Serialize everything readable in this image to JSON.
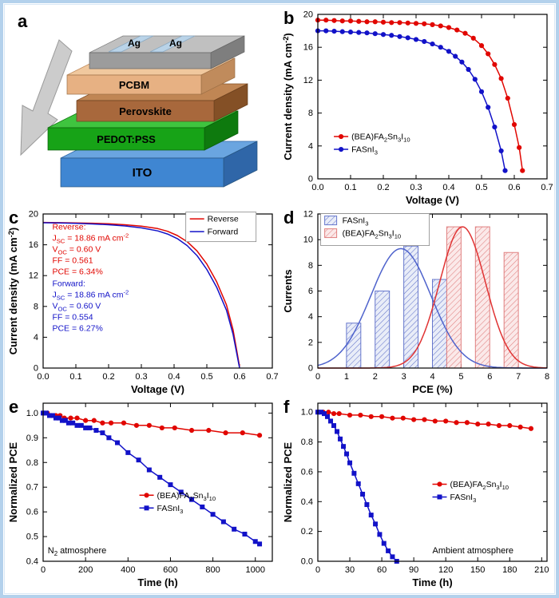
{
  "panels": {
    "a": "a",
    "b": "b",
    "c": "c",
    "d": "d",
    "e": "e",
    "f": "f"
  },
  "device": {
    "layers": [
      {
        "name": "ITO",
        "color": "#3f86d2"
      },
      {
        "name": "PEDOT:PSS",
        "color": "#17a317"
      },
      {
        "name": "Perovskite",
        "color": "#a8683c"
      },
      {
        "name": "PCBM",
        "color": "#e7b183"
      },
      {
        "name": "Ag",
        "color": "#9c9c9c"
      }
    ],
    "electrode_labels": [
      "Ag",
      "Ag"
    ]
  },
  "colors": {
    "series_red": "#e10600",
    "series_blue": "#1212c8",
    "frame_blue": "#b3d1ec"
  },
  "chart_data": [
    {
      "panel": "b",
      "type": "line",
      "xlabel": "Voltage (V)",
      "ylabel": "Current density (mA cm^{-2})",
      "xlim": [
        0,
        0.7
      ],
      "ylim": [
        0,
        20
      ],
      "xticks": {
        "vals": [
          0,
          0.1,
          0.2,
          0.3,
          0.4,
          0.5,
          0.6,
          0.7
        ],
        "labels": [
          "0.0",
          "0.1",
          "0.2",
          "0.3",
          "0.4",
          "0.5",
          "0.6",
          "0.7"
        ]
      },
      "yticks": {
        "vals": [
          0,
          4,
          8,
          12,
          16,
          20
        ],
        "labels": [
          "0",
          "4",
          "8",
          "12",
          "16",
          "20"
        ]
      },
      "series": [
        {
          "name": "(BEA)FA_{2}Sn_{3}I_{10}",
          "color": "#e10600",
          "marker": "circle",
          "x": [
            0,
            0.025,
            0.05,
            0.075,
            0.1,
            0.125,
            0.15,
            0.175,
            0.2,
            0.225,
            0.25,
            0.275,
            0.3,
            0.325,
            0.35,
            0.375,
            0.4,
            0.425,
            0.45,
            0.475,
            0.5,
            0.52,
            0.54,
            0.56,
            0.58,
            0.6,
            0.615,
            0.625
          ],
          "y": [
            19.3,
            19.3,
            19.25,
            19.2,
            19.2,
            19.15,
            19.1,
            19.1,
            19.05,
            19.0,
            19.0,
            18.95,
            18.9,
            18.85,
            18.75,
            18.6,
            18.4,
            18.1,
            17.7,
            17.1,
            16.2,
            15.2,
            13.9,
            12.2,
            9.8,
            6.6,
            3.8,
            1.0
          ]
        },
        {
          "name": "FASnI_{3}",
          "color": "#1212c8",
          "marker": "circle",
          "x": [
            0,
            0.025,
            0.05,
            0.075,
            0.1,
            0.125,
            0.15,
            0.175,
            0.2,
            0.225,
            0.25,
            0.275,
            0.3,
            0.325,
            0.35,
            0.375,
            0.4,
            0.42,
            0.44,
            0.46,
            0.48,
            0.5,
            0.52,
            0.54,
            0.56,
            0.572
          ],
          "y": [
            18.0,
            18.0,
            17.95,
            17.9,
            17.85,
            17.8,
            17.75,
            17.65,
            17.55,
            17.45,
            17.3,
            17.15,
            16.95,
            16.7,
            16.4,
            16.0,
            15.5,
            14.9,
            14.2,
            13.3,
            12.1,
            10.6,
            8.7,
            6.3,
            3.4,
            1.0
          ]
        }
      ],
      "legend": {
        "fx": 0.07,
        "fy": 0.76,
        "frame": false
      },
      "annotations": []
    },
    {
      "panel": "c",
      "type": "line",
      "xlabel": "Voltage (V)",
      "ylabel": "Current density (mA cm^{-2})",
      "xlim": [
        0,
        0.7
      ],
      "ylim": [
        0,
        20
      ],
      "xticks": {
        "vals": [
          0,
          0.1,
          0.2,
          0.3,
          0.4,
          0.5,
          0.6,
          0.7
        ],
        "labels": [
          "0.0",
          "0.1",
          "0.2",
          "0.3",
          "0.4",
          "0.5",
          "0.6",
          "0.7"
        ]
      },
      "yticks": {
        "vals": [
          0,
          4,
          8,
          12,
          16,
          20
        ],
        "labels": [
          "0",
          "4",
          "8",
          "12",
          "16",
          "20"
        ]
      },
      "series": [
        {
          "name": "Reverse",
          "color": "#e10600",
          "x": [
            0,
            0.05,
            0.1,
            0.15,
            0.2,
            0.25,
            0.3,
            0.35,
            0.38,
            0.41,
            0.44,
            0.47,
            0.5,
            0.53,
            0.56,
            0.58,
            0.6
          ],
          "y": [
            18.9,
            18.87,
            18.84,
            18.8,
            18.73,
            18.6,
            18.42,
            18.1,
            17.75,
            17.2,
            16.4,
            15.2,
            13.5,
            11.2,
            8.2,
            5.0,
            0.2
          ]
        },
        {
          "name": "Forward",
          "color": "#1212c8",
          "x": [
            0,
            0.05,
            0.1,
            0.15,
            0.2,
            0.25,
            0.3,
            0.35,
            0.38,
            0.41,
            0.44,
            0.47,
            0.5,
            0.53,
            0.56,
            0.58,
            0.6
          ],
          "y": [
            18.86,
            18.83,
            18.78,
            18.7,
            18.6,
            18.45,
            18.2,
            17.8,
            17.4,
            16.8,
            15.9,
            14.6,
            12.8,
            10.5,
            7.5,
            4.4,
            0.0
          ]
        }
      ],
      "legend": {
        "fx": 0.64,
        "fy": 0.05,
        "frame": true,
        "w": 88,
        "h": 37
      },
      "annotations": [
        {
          "fx": 0.04,
          "fy": 0.1,
          "color": "#e10600",
          "size": 10.5,
          "lines": [
            "Reverse:",
            "J_{SC} = 18.86 mA cm^{-2}",
            "V_{OC} = 0.60 V",
            "FF = 0.561",
            "PCE = 6.34%"
          ]
        },
        {
          "fx": 0.04,
          "fy": 0.47,
          "color": "#1212c8",
          "size": 10.5,
          "lines": [
            "Forward:",
            "J_{SC} = 18.86 mA cm^{-2}",
            "V_{OC} = 0.60 V",
            "FF = 0.554",
            "PCE = 6.27%"
          ]
        }
      ]
    },
    {
      "panel": "d",
      "type": "bar",
      "xlabel": "PCE (%)",
      "ylabel": "Currents",
      "xlim": [
        0,
        8
      ],
      "ylim": [
        0,
        12
      ],
      "xticks": {
        "vals": [
          0,
          1,
          2,
          3,
          4,
          5,
          6,
          7,
          8
        ],
        "labels": [
          "0",
          "1",
          "2",
          "3",
          "4",
          "5",
          "6",
          "7",
          "8"
        ]
      },
      "yticks": {
        "vals": [
          0,
          2,
          4,
          6,
          8,
          10,
          12
        ],
        "labels": [
          "0",
          "2",
          "4",
          "6",
          "8",
          "10",
          "12"
        ]
      },
      "series": [
        {
          "name": "FASnI_{3}",
          "kind": "bars",
          "color": "#6677cc",
          "fill": "#e9edf8",
          "hatch": true,
          "centers": [
            1.25,
            2.25,
            3.25,
            4.25
          ],
          "width": 0.5,
          "heights": [
            3.5,
            6,
            9.5,
            6.9
          ]
        },
        {
          "name": "(BEA)FA_{2}Sn_{3}I_{10}",
          "kind": "bars",
          "color": "#e08080",
          "fill": "#fbe9e9",
          "hatch": true,
          "centers": [
            4.75,
            5.75,
            6.75
          ],
          "width": 0.5,
          "heights": [
            11,
            11,
            9
          ]
        },
        {
          "kind": "gauss",
          "color": "#4f63cc",
          "mean": 2.9,
          "sigma": 1.05,
          "amp": 9.3
        },
        {
          "kind": "gauss",
          "color": "#e03333",
          "mean": 5.05,
          "sigma": 0.8,
          "amp": 11.0
        }
      ],
      "legend": {
        "fx": 0.03,
        "fy": 0.06,
        "frame": true,
        "w": 136,
        "h": 40
      },
      "annotations": []
    },
    {
      "panel": "e",
      "type": "line",
      "xlabel": "Time (h)",
      "ylabel": "Normalized PCE",
      "xlim": [
        0,
        1080
      ],
      "ylim": [
        0.4,
        1.04
      ],
      "xticks": {
        "vals": [
          0,
          200,
          400,
          600,
          800,
          1000
        ],
        "labels": [
          "0",
          "200",
          "400",
          "600",
          "800",
          "1000"
        ]
      },
      "yticks": {
        "vals": [
          0.4,
          0.5,
          0.6,
          0.7,
          0.8,
          0.9,
          1.0
        ],
        "labels": [
          "0.4",
          "0.5",
          "0.6",
          "0.7",
          "0.8",
          "0.9",
          "1.0"
        ]
      },
      "series": [
        {
          "name": "(BEA)FA_{2}Sn_{3}I_{10}",
          "color": "#e10600",
          "marker": "circle",
          "x": [
            0,
            20,
            40,
            60,
            80,
            100,
            130,
            160,
            200,
            240,
            280,
            320,
            380,
            440,
            500,
            560,
            620,
            700,
            780,
            860,
            940,
            1020
          ],
          "y": [
            1.0,
            1.0,
            0.99,
            0.99,
            0.99,
            0.98,
            0.98,
            0.98,
            0.97,
            0.97,
            0.96,
            0.96,
            0.96,
            0.95,
            0.95,
            0.94,
            0.94,
            0.93,
            0.93,
            0.92,
            0.92,
            0.91
          ]
        },
        {
          "name": "FASnI_{3}",
          "color": "#1212c8",
          "marker": "square",
          "x": [
            0,
            15,
            30,
            45,
            60,
            75,
            90,
            105,
            120,
            140,
            160,
            180,
            200,
            220,
            250,
            280,
            310,
            350,
            400,
            450,
            500,
            550,
            600,
            650,
            700,
            750,
            800,
            850,
            900,
            950,
            1000,
            1020
          ],
          "y": [
            1.0,
            1.0,
            0.99,
            0.99,
            0.98,
            0.98,
            0.97,
            0.97,
            0.96,
            0.96,
            0.95,
            0.95,
            0.94,
            0.94,
            0.93,
            0.92,
            0.9,
            0.88,
            0.84,
            0.81,
            0.77,
            0.74,
            0.71,
            0.68,
            0.65,
            0.62,
            0.59,
            0.56,
            0.53,
            0.51,
            0.48,
            0.47
          ]
        }
      ],
      "legend": {
        "fx": 0.42,
        "fy": 0.6,
        "frame": false
      },
      "annotations": [
        {
          "fx": 0.02,
          "fy": 0.95,
          "color": "#000000",
          "size": 11,
          "lines": [
            "N_{2} atmosphere"
          ]
        }
      ]
    },
    {
      "panel": "f",
      "type": "line",
      "xlabel": "Time (h)",
      "ylabel": "Normalized PCE",
      "xlim": [
        0,
        215
      ],
      "ylim": [
        0,
        1.06
      ],
      "xticks": {
        "vals": [
          0,
          30,
          60,
          90,
          120,
          150,
          180,
          210
        ],
        "labels": [
          "0",
          "30",
          "60",
          "90",
          "120",
          "150",
          "180",
          "210"
        ]
      },
      "yticks": {
        "vals": [
          0,
          0.2,
          0.4,
          0.6,
          0.8,
          1.0
        ],
        "labels": [
          "0.0",
          "0.2",
          "0.4",
          "0.6",
          "0.8",
          "1.0"
        ]
      },
      "series": [
        {
          "name": "(BEA)FA_{2}Sn_{3}I_{10}",
          "color": "#e10600",
          "marker": "circle",
          "x": [
            0,
            5,
            10,
            15,
            20,
            30,
            40,
            50,
            60,
            70,
            80,
            90,
            100,
            110,
            120,
            130,
            140,
            150,
            160,
            170,
            180,
            190,
            200
          ],
          "y": [
            1.0,
            1.0,
            1.0,
            0.99,
            0.99,
            0.98,
            0.98,
            0.97,
            0.97,
            0.96,
            0.96,
            0.95,
            0.95,
            0.94,
            0.94,
            0.93,
            0.93,
            0.92,
            0.92,
            0.91,
            0.91,
            0.9,
            0.89
          ]
        },
        {
          "name": "FASnI_{3}",
          "color": "#1212c8",
          "marker": "square",
          "x": [
            0,
            3,
            6,
            9,
            12,
            15,
            18,
            21,
            24,
            27,
            30,
            34,
            38,
            42,
            46,
            50,
            54,
            58,
            62,
            66,
            70,
            74
          ],
          "y": [
            1.0,
            1.0,
            0.99,
            0.97,
            0.94,
            0.91,
            0.87,
            0.82,
            0.77,
            0.72,
            0.66,
            0.59,
            0.52,
            0.45,
            0.38,
            0.31,
            0.25,
            0.18,
            0.12,
            0.07,
            0.03,
            0.0
          ]
        }
      ],
      "legend": {
        "fx": 0.5,
        "fy": 0.53,
        "frame": false
      },
      "annotations": [
        {
          "fx": 0.5,
          "fy": 0.95,
          "color": "#000000",
          "size": 11,
          "lines": [
            "Ambient atmosphere"
          ]
        }
      ]
    }
  ]
}
